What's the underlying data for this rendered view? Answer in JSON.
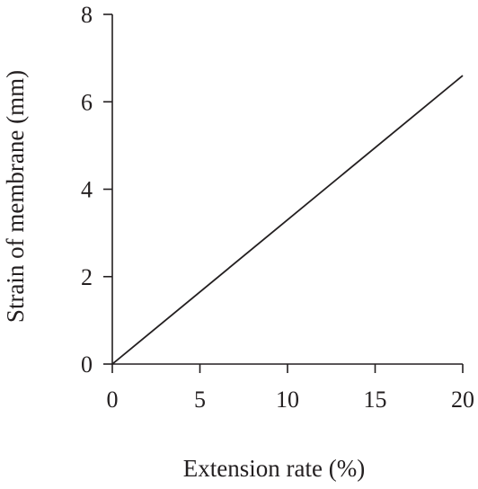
{
  "chart_data": {
    "type": "line",
    "title": "",
    "xlabel": "Extension rate (%)",
    "ylabel": "Strain of membrane (mm)",
    "xlim": [
      0,
      20
    ],
    "ylim": [
      0,
      8
    ],
    "x_ticks": [
      0,
      5,
      10,
      15,
      20
    ],
    "y_ticks": [
      0,
      2,
      4,
      6,
      8
    ],
    "grid": false,
    "series": [
      {
        "x": [
          0,
          20
        ],
        "y": [
          0,
          6.6
        ],
        "color": "#231f20"
      }
    ]
  }
}
